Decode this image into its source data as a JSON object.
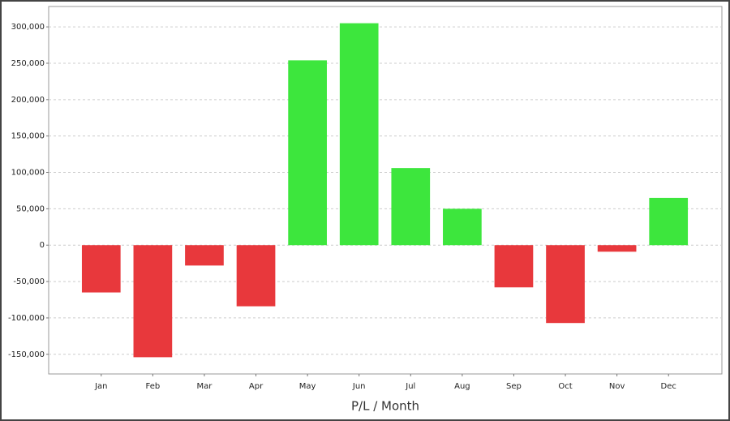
{
  "chart_data": {
    "type": "bar",
    "x_label": "P/L / Month",
    "categories": [
      "Jan",
      "Feb",
      "Mar",
      "Apr",
      "May",
      "Jun",
      "Jul",
      "Aug",
      "Sep",
      "Oct",
      "Nov",
      "Dec"
    ],
    "values": [
      -65000,
      -154000,
      -28000,
      -84000,
      254000,
      305000,
      106000,
      50000,
      -58000,
      -107000,
      -9000,
      65000
    ],
    "positive_color": "#3de63d",
    "negative_color": "#e8383c",
    "ylim": [
      -177000,
      328000
    ],
    "yticks": [
      {
        "value": -150000,
        "label": "-150,000"
      },
      {
        "value": -100000,
        "label": "-100,000"
      },
      {
        "value": -50000,
        "label": "-50,000"
      },
      0,
      {
        "value": 50000,
        "label": "50,000"
      },
      {
        "value": 100000,
        "label": "100,000"
      },
      {
        "value": 150000,
        "label": "150,000"
      },
      {
        "value": 200000,
        "label": "200,000"
      },
      {
        "value": 250000,
        "label": "250,000"
      },
      {
        "value": 300000,
        "label": "300,000"
      }
    ],
    "grid": true
  }
}
